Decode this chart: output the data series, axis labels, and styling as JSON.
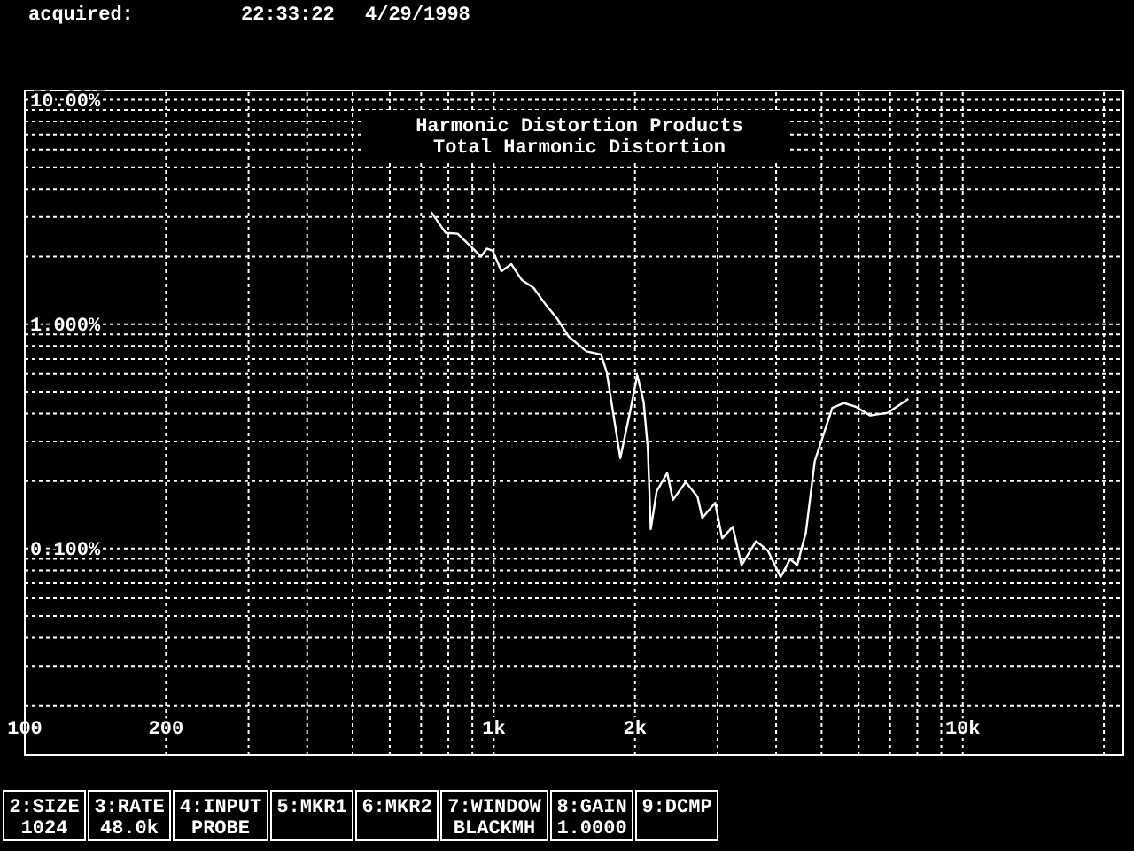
{
  "chart_data": {
    "type": "line",
    "title": "Harmonic Distortion Products",
    "subtitle": "Total Harmonic Distortion",
    "log": "xy",
    "grid": true,
    "marker": "none",
    "line_style": "solid",
    "xlim": [
      100,
      22000
    ],
    "ylim": [
      0.012,
      11
    ],
    "xticks": [
      100,
      200,
      {
        "value": 300,
        "label": null
      },
      {
        "value": 400,
        "label": null
      },
      {
        "value": 500,
        "label": null
      },
      {
        "value": 600,
        "label": null
      },
      {
        "value": 700,
        "label": null
      },
      {
        "value": 800,
        "label": null
      },
      {
        "value": 900,
        "label": null
      },
      {
        "value": 1000,
        "label": "1k"
      },
      {
        "value": 2000,
        "label": "2k"
      },
      {
        "value": 3000,
        "label": null
      },
      {
        "value": 4000,
        "label": null
      },
      {
        "value": 5000,
        "label": null
      },
      {
        "value": 6000,
        "label": null
      },
      {
        "value": 7000,
        "label": null
      },
      {
        "value": 8000,
        "label": null
      },
      {
        "value": 9000,
        "label": null
      },
      {
        "value": 10000,
        "label": "10k"
      },
      {
        "value": 20000,
        "label": null
      }
    ],
    "yticks": [
      {
        "value": 0.02,
        "label": null
      },
      {
        "value": 0.03,
        "label": null
      },
      {
        "value": 0.04,
        "label": null
      },
      {
        "value": 0.05,
        "label": null
      },
      {
        "value": 0.06,
        "label": null
      },
      {
        "value": 0.07,
        "label": null
      },
      {
        "value": 0.08,
        "label": null
      },
      {
        "value": 0.09,
        "label": null
      },
      {
        "value": 0.1,
        "label": "0.100%"
      },
      {
        "value": 0.2,
        "label": null
      },
      {
        "value": 0.3,
        "label": null
      },
      {
        "value": 0.4,
        "label": null
      },
      {
        "value": 0.5,
        "label": null
      },
      {
        "value": 0.6,
        "label": null
      },
      {
        "value": 0.7,
        "label": null
      },
      {
        "value": 0.8,
        "label": null
      },
      {
        "value": 0.9,
        "label": null
      },
      {
        "value": 1,
        "label": "1.000%"
      },
      {
        "value": 2,
        "label": null
      },
      {
        "value": 3,
        "label": null
      },
      {
        "value": 4,
        "label": null
      },
      {
        "value": 5,
        "label": null
      },
      {
        "value": 6,
        "label": null
      },
      {
        "value": 7,
        "label": null
      },
      {
        "value": 8,
        "label": null
      },
      {
        "value": 9,
        "label": null
      },
      {
        "value": 10,
        "label": "10.00%"
      }
    ],
    "series": [
      {
        "color": "#ffffff",
        "x": [
          735,
          790,
          837,
          886,
          939,
          966,
          994,
          1038,
          1090,
          1148,
          1216,
          1287,
          1364,
          1445,
          1576,
          1693,
          1741,
          1861,
          1954,
          2023,
          2087,
          2131,
          2161,
          2225,
          2343,
          2410,
          2567,
          2720,
          2784,
          2965,
          3069,
          3232,
          3375,
          3625,
          3839,
          4089,
          4284,
          4436,
          4629,
          4834,
          5269,
          5577,
          5909,
          6346,
          6921,
          7654
        ],
        "values": [
          3.16,
          2.55,
          2.53,
          2.26,
          2.0,
          2.17,
          2.13,
          1.72,
          1.85,
          1.57,
          1.45,
          1.23,
          1.06,
          0.88,
          0.756,
          0.733,
          0.611,
          0.253,
          0.411,
          0.592,
          0.45,
          0.277,
          0.122,
          0.18,
          0.217,
          0.165,
          0.198,
          0.17,
          0.137,
          0.16,
          0.111,
          0.125,
          0.0844,
          0.108,
          0.098,
          0.0746,
          0.0896,
          0.0844,
          0.118,
          0.245,
          0.424,
          0.445,
          0.429,
          0.392,
          0.403,
          0.464
        ]
      }
    ],
    "annotations": [
      "acquired:",
      "22:33:22",
      "4/29/1998",
      "2:SIZE\n1024",
      "3:RATE\n48.0k",
      "4:INPUT\nPROBE",
      "5:MKR1",
      "6:MKR2",
      "7:WINDOW\nBLACKMH",
      "8:GAIN\n1.0000",
      "9:DCMP"
    ]
  }
}
